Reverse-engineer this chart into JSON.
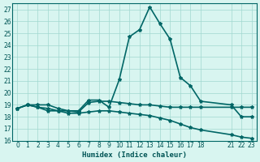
{
  "xlabel": "Humidex (Indice chaleur)",
  "bg_color": "#d8f5f0",
  "line_color": "#006666",
  "grid_color": "#a0d8d0",
  "xlim": [
    -0.5,
    23.5
  ],
  "ylim": [
    16,
    27.5
  ],
  "yticks": [
    16,
    17,
    18,
    19,
    20,
    21,
    22,
    23,
    24,
    25,
    26,
    27
  ],
  "xtick_positions": [
    0,
    1,
    2,
    3,
    4,
    5,
    6,
    7,
    8,
    9,
    10,
    11,
    12,
    13,
    14,
    15,
    16,
    17,
    18,
    21,
    22,
    23
  ],
  "xtick_labels": [
    "0",
    "1",
    "2",
    "3",
    "4",
    "5",
    "6",
    "7",
    "8",
    "9",
    "10",
    "11",
    "12",
    "13",
    "14",
    "15",
    "16",
    "17",
    "18",
    "21",
    "22",
    "23"
  ],
  "line1_x": [
    0,
    1,
    2,
    3,
    4,
    5,
    6,
    7,
    8,
    9,
    10,
    11,
    12,
    13,
    14,
    15,
    16,
    17,
    18,
    21,
    22,
    23
  ],
  "line1_y": [
    18.7,
    19.0,
    19.0,
    19.0,
    18.7,
    18.5,
    18.5,
    19.4,
    19.4,
    18.8,
    21.1,
    24.7,
    25.3,
    27.2,
    25.8,
    24.5,
    21.3,
    20.6,
    19.3,
    19.0,
    18.0,
    18.0
  ],
  "line2_x": [
    0,
    1,
    2,
    3,
    4,
    5,
    6,
    7,
    8,
    9,
    10,
    11,
    12,
    13,
    14,
    15,
    16,
    17,
    18,
    21,
    22,
    23
  ],
  "line2_y": [
    18.7,
    19.0,
    18.8,
    18.5,
    18.5,
    18.3,
    18.3,
    18.4,
    18.5,
    18.5,
    18.4,
    18.3,
    18.2,
    18.1,
    17.9,
    17.7,
    17.4,
    17.1,
    16.9,
    16.5,
    16.3,
    16.2
  ],
  "line3_x": [
    0,
    1,
    2,
    3,
    4,
    5,
    6,
    7,
    8,
    9,
    10,
    11,
    12,
    13,
    14,
    15,
    16,
    17,
    18,
    21,
    22,
    23
  ],
  "line3_y": [
    18.7,
    19.0,
    18.8,
    18.7,
    18.5,
    18.5,
    18.4,
    19.2,
    19.3,
    19.3,
    19.2,
    19.1,
    19.0,
    19.0,
    18.9,
    18.8,
    18.8,
    18.8,
    18.8,
    18.8,
    18.8,
    18.8
  ],
  "marker_size": 3.0,
  "linewidth": 1.2,
  "font_color": "#005555"
}
